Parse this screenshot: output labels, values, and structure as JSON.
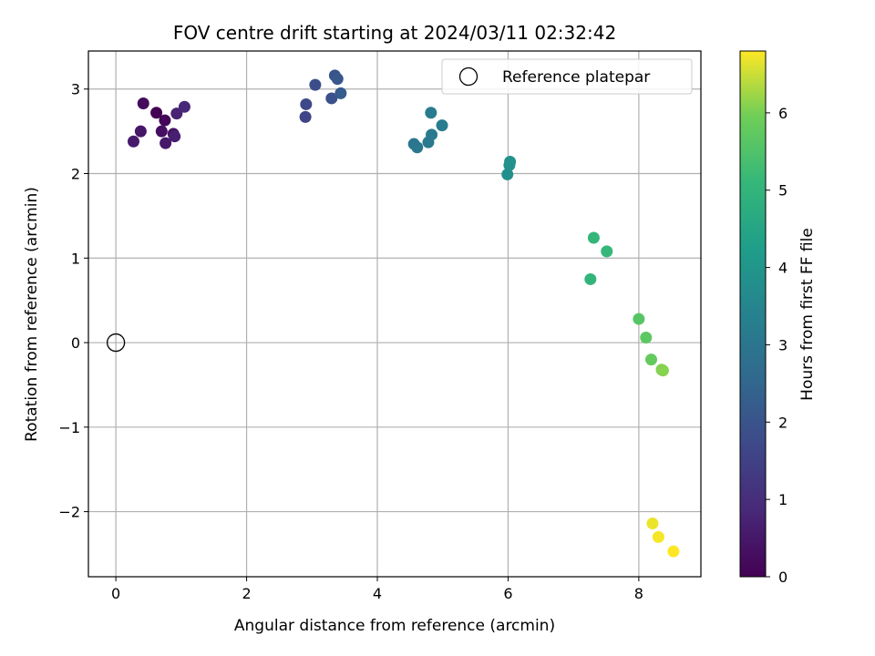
{
  "chart_data": {
    "type": "scatter",
    "title": "FOV centre drift starting at 2024/03/11 02:32:42",
    "xlabel": "Angular distance from reference (arcmin)",
    "ylabel": "Rotation from reference (arcmin)",
    "xlim": [
      -0.42,
      8.95
    ],
    "ylim": [
      -2.77,
      3.45
    ],
    "xticks": [
      0,
      2,
      4,
      6,
      8
    ],
    "yticks": [
      -2,
      -1,
      0,
      1,
      2,
      3
    ],
    "grid": true,
    "colormap": "viridis",
    "colorbar": {
      "label": "Hours from first FF file",
      "range": [
        0,
        6.8
      ],
      "ticks": [
        0,
        1,
        2,
        3,
        4,
        5,
        6
      ]
    },
    "legend": {
      "placement": "top-right",
      "entries": [
        {
          "label": "Reference platepar",
          "marker": "open-circle",
          "color": "#000000"
        }
      ]
    },
    "reference_point": {
      "x": 0,
      "y": 0
    },
    "points": [
      {
        "x": 0.62,
        "y": 2.72,
        "hours": 0.0
      },
      {
        "x": 0.75,
        "y": 2.63,
        "hours": 0.1
      },
      {
        "x": 0.42,
        "y": 2.83,
        "hours": 0.2
      },
      {
        "x": 0.7,
        "y": 2.5,
        "hours": 0.3
      },
      {
        "x": 0.88,
        "y": 2.47,
        "hours": 0.4
      },
      {
        "x": 0.38,
        "y": 2.5,
        "hours": 0.45
      },
      {
        "x": 0.76,
        "y": 2.36,
        "hours": 0.5
      },
      {
        "x": 0.27,
        "y": 2.38,
        "hours": 0.55
      },
      {
        "x": 0.9,
        "y": 2.44,
        "hours": 0.65
      },
      {
        "x": 0.93,
        "y": 2.71,
        "hours": 0.75
      },
      {
        "x": 1.05,
        "y": 2.79,
        "hours": 0.85
      },
      {
        "x": 2.9,
        "y": 2.67,
        "hours": 1.6
      },
      {
        "x": 2.91,
        "y": 2.82,
        "hours": 1.7
      },
      {
        "x": 3.05,
        "y": 3.05,
        "hours": 1.8
      },
      {
        "x": 3.3,
        "y": 2.89,
        "hours": 1.9
      },
      {
        "x": 3.35,
        "y": 3.16,
        "hours": 2.0
      },
      {
        "x": 3.39,
        "y": 3.12,
        "hours": 2.1
      },
      {
        "x": 3.44,
        "y": 2.95,
        "hours": 2.2
      },
      {
        "x": 4.56,
        "y": 2.35,
        "hours": 3.0
      },
      {
        "x": 4.61,
        "y": 2.31,
        "hours": 3.05
      },
      {
        "x": 4.78,
        "y": 2.37,
        "hours": 3.1
      },
      {
        "x": 4.83,
        "y": 2.46,
        "hours": 3.15
      },
      {
        "x": 4.82,
        "y": 2.72,
        "hours": 3.2
      },
      {
        "x": 4.99,
        "y": 2.57,
        "hours": 3.25
      },
      {
        "x": 5.99,
        "y": 1.99,
        "hours": 3.8
      },
      {
        "x": 6.02,
        "y": 2.1,
        "hours": 3.85
      },
      {
        "x": 6.03,
        "y": 2.14,
        "hours": 3.9
      },
      {
        "x": 7.26,
        "y": 0.75,
        "hours": 5.0
      },
      {
        "x": 7.31,
        "y": 1.24,
        "hours": 5.05
      },
      {
        "x": 7.51,
        "y": 1.08,
        "hours": 5.1
      },
      {
        "x": 8.0,
        "y": 0.28,
        "hours": 5.6
      },
      {
        "x": 8.11,
        "y": 0.06,
        "hours": 5.7
      },
      {
        "x": 8.19,
        "y": -0.2,
        "hours": 5.8
      },
      {
        "x": 8.35,
        "y": -0.32,
        "hours": 6.05
      },
      {
        "x": 8.37,
        "y": -0.33,
        "hours": 6.1
      },
      {
        "x": 8.21,
        "y": -2.14,
        "hours": 6.7
      },
      {
        "x": 8.3,
        "y": -2.3,
        "hours": 6.75
      },
      {
        "x": 8.53,
        "y": -2.47,
        "hours": 6.8
      }
    ]
  }
}
